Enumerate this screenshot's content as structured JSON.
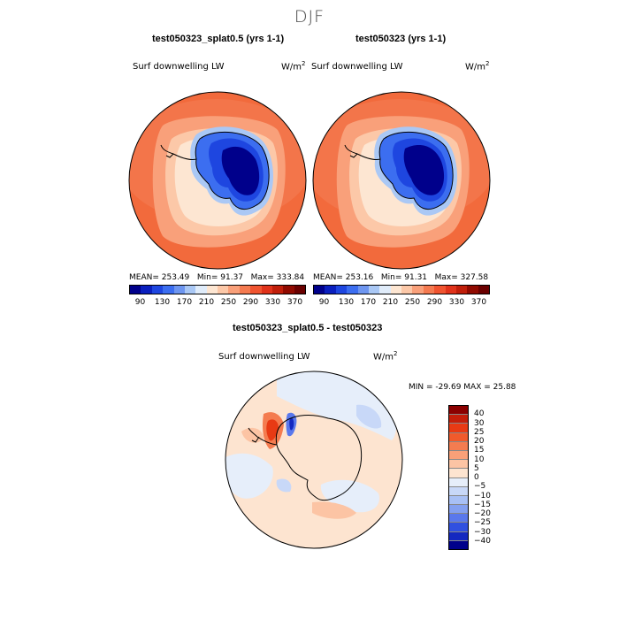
{
  "season": "DJF",
  "panels": [
    {
      "title": "test050323_splat0.5 (yrs 1-1)",
      "variable": "Surf downwelling LW",
      "units_base": "W/m",
      "units_exp": "2",
      "mean_label": "MEAN=",
      "mean": "253.49",
      "min_label": "Min=",
      "min": "91.37",
      "max_label": "Max=",
      "max": "333.84"
    },
    {
      "title": "test050323 (yrs 1-1)",
      "variable": "Surf downwelling LW",
      "units_base": "W/m",
      "units_exp": "2",
      "mean_label": "MEAN=",
      "mean": "253.16",
      "min_label": "Min=",
      "min": "91.31",
      "max_label": "Max=",
      "max": "327.58"
    }
  ],
  "diff_panel": {
    "title": "test050323_splat0.5 - test050323",
    "variable": "Surf downwelling LW",
    "units_base": "W/m",
    "units_exp": "2",
    "minmax": "MIN = -29.69 MAX =  25.88"
  },
  "colorbar_abs": {
    "colors": [
      "#00008b",
      "#0a1fbe",
      "#1e46e0",
      "#3c6ef0",
      "#6e96f0",
      "#aac8f5",
      "#e0ecfa",
      "#fde6d2",
      "#fcc8a8",
      "#f9a07a",
      "#f47a50",
      "#f05430",
      "#e0321a",
      "#c01e0a",
      "#900a00",
      "#6a0000"
    ],
    "tick_labels": [
      "90",
      "130",
      "170",
      "210",
      "250",
      "290",
      "330",
      "370"
    ]
  },
  "colorbar_diff": {
    "colors_top_to_bottom": [
      "#8b0000",
      "#c41e0a",
      "#e83a14",
      "#f05a2c",
      "#f47c50",
      "#f9a078",
      "#fcc4a4",
      "#fde4d0",
      "#e6eefa",
      "#c8d8f8",
      "#a8c0f5",
      "#84a0f0",
      "#5a78ec",
      "#3050e0",
      "#1428c0",
      "#00008b"
    ],
    "labels": [
      "40",
      "30",
      "25",
      "20",
      "15",
      "10",
      "5",
      "0",
      "−5",
      "−10",
      "−15",
      "−20",
      "−25",
      "−30",
      "−40"
    ]
  },
  "colors": {
    "ocean_warm": "#f26a3c",
    "antarctic_cold": "#0018b0",
    "coastline": "#000000"
  }
}
